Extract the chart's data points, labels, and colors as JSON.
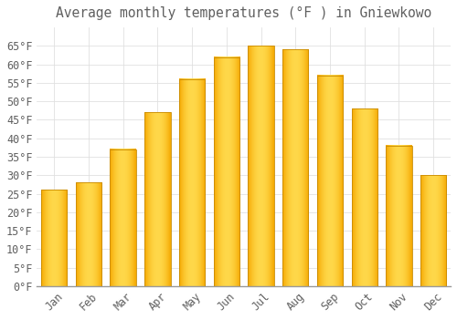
{
  "title": "Average monthly temperatures (°F ) in Gniewkowo",
  "months": [
    "Jan",
    "Feb",
    "Mar",
    "Apr",
    "May",
    "Jun",
    "Jul",
    "Aug",
    "Sep",
    "Oct",
    "Nov",
    "Dec"
  ],
  "values": [
    26,
    28,
    37,
    47,
    56,
    62,
    65,
    64,
    57,
    48,
    38,
    30
  ],
  "bar_color_light": "#FFD04A",
  "bar_color_dark": "#F5A800",
  "bar_edge_color": "#C88A00",
  "background_color": "#FFFFFF",
  "grid_color": "#E0E0E0",
  "text_color": "#606060",
  "ylim": [
    0,
    70
  ],
  "yticks": [
    0,
    5,
    10,
    15,
    20,
    25,
    30,
    35,
    40,
    45,
    50,
    55,
    60,
    65
  ],
  "title_fontsize": 10.5,
  "tick_fontsize": 8.5,
  "font_family": "monospace",
  "bar_width": 0.75
}
